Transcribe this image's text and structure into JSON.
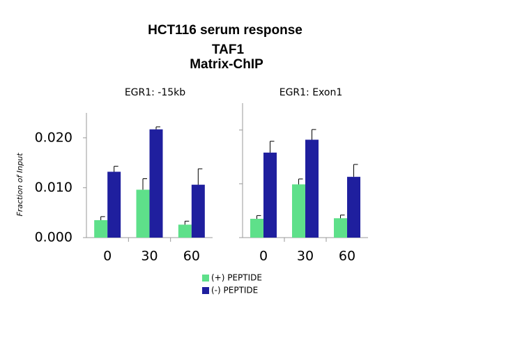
{
  "figure": {
    "title_lines": [
      "HCT116 serum response",
      "TAF1",
      "Matrix-ChIP"
    ],
    "ylabel": "Fraction of Input"
  },
  "chart_data": [
    {
      "type": "bar",
      "title": "EGR1: -15kb",
      "categories": [
        "0",
        "30",
        "60"
      ],
      "series": [
        {
          "name": "(+) PEPTIDE",
          "color": "#5ee08a",
          "values": [
            0.0035,
            0.0096,
            0.0026
          ],
          "errors": [
            0.0007,
            0.0022,
            0.0007
          ]
        },
        {
          "name": "(-) PEPTIDE",
          "color": "#1f1f9e",
          "values": [
            0.0132,
            0.0217,
            0.0106
          ],
          "errors": [
            0.0011,
            0.0005,
            0.0032
          ]
        }
      ],
      "ylim": [
        0,
        0.025
      ],
      "yticks": [
        {
          "value": 0,
          "label": "0.000"
        },
        {
          "value": 0.01,
          "label": "0.010"
        },
        {
          "value": 0.02,
          "label": "0.020"
        }
      ],
      "show_ytick_labels": true,
      "legend": "bottom"
    },
    {
      "type": "bar",
      "title": "EGR1: Exon1",
      "categories": [
        "0",
        "30",
        "60"
      ],
      "series": [
        {
          "name": "(+) PEPTIDE",
          "color": "#5ee08a",
          "values": [
            0.0035,
            0.0099,
            0.0036
          ],
          "errors": [
            0.0006,
            0.001,
            0.0006
          ]
        },
        {
          "name": "(-) PEPTIDE",
          "color": "#1f1f9e",
          "values": [
            0.0158,
            0.0182,
            0.0113
          ],
          "errors": [
            0.0021,
            0.0019,
            0.0023
          ]
        }
      ],
      "ylim": [
        0,
        0.025
      ],
      "yticks": [
        0,
        0.01,
        0.02
      ],
      "show_ytick_labels": false
    }
  ]
}
